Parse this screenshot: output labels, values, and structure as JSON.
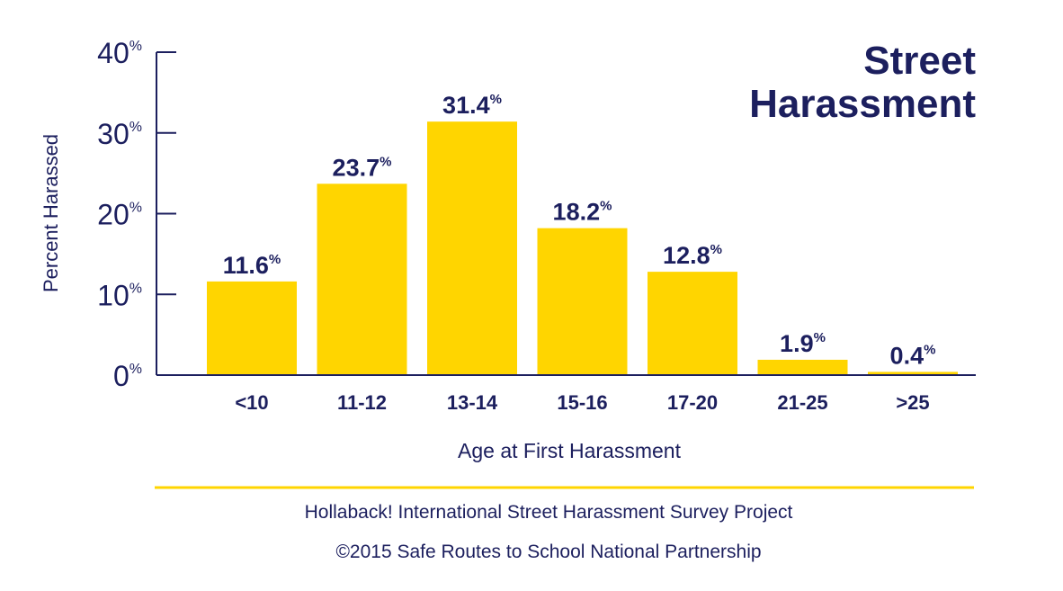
{
  "chart_data": {
    "type": "bar",
    "title_lines": [
      "Street",
      "Harassment"
    ],
    "categories": [
      "<10",
      "11-12",
      "13-14",
      "15-16",
      "17-20",
      "21-25",
      ">25"
    ],
    "values": [
      11.6,
      23.7,
      31.4,
      18.2,
      12.8,
      1.9,
      0.4
    ],
    "value_labels": [
      "11.6",
      "23.7",
      "31.4",
      "18.2",
      "12.8",
      "1.9",
      "0.4"
    ],
    "percent_sign": "%",
    "xlabel": "Age at First Harassment",
    "ylabel": "Percent Harassed",
    "ylim": [
      0,
      40
    ],
    "yticks": [
      {
        "value": 0,
        "label": "0"
      },
      {
        "value": 10,
        "label": "10"
      },
      {
        "value": 20,
        "label": "20"
      },
      {
        "value": 30,
        "label": "30"
      },
      {
        "value": 40,
        "label": "40"
      }
    ],
    "grid": false,
    "legend": "none"
  },
  "footer": {
    "source": "Hollaback! International Street Harassment Survey Project",
    "copyright": "©2015 Safe Routes to School National Partnership"
  },
  "colors": {
    "bar": "#ffd500",
    "text": "#1c1f5e",
    "axis": "#1c1f5e",
    "divider": "#ffd500"
  }
}
